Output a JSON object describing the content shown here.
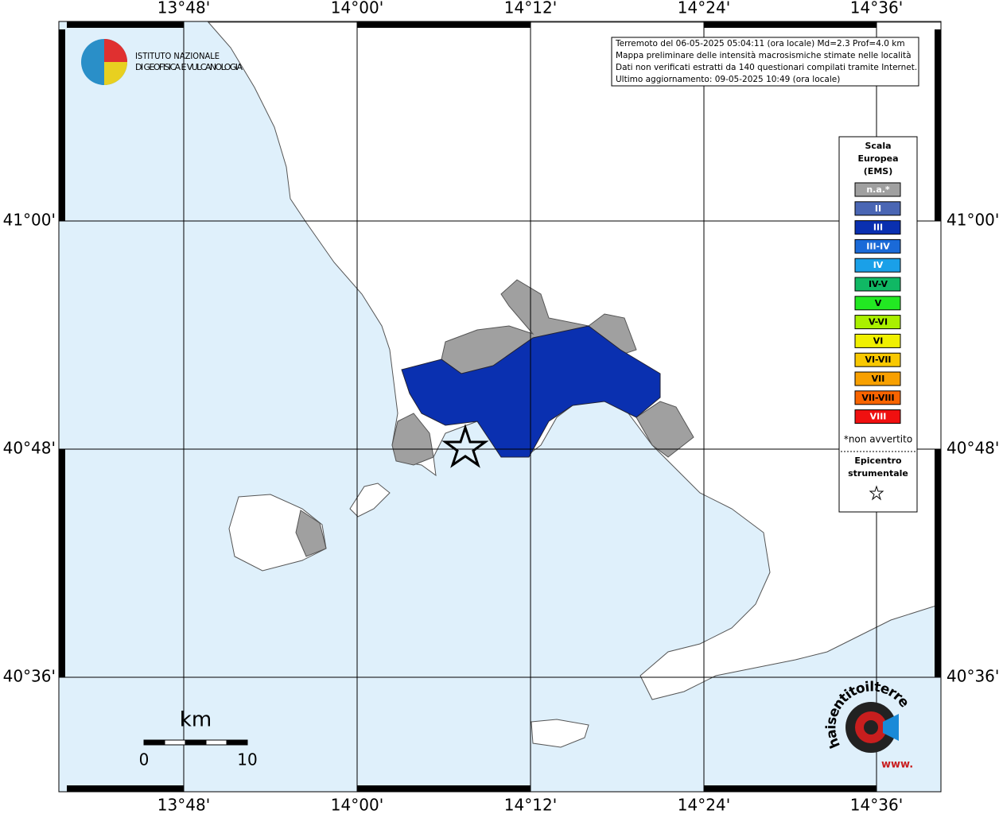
{
  "map": {
    "lon_ticks": [
      "13°48'",
      "14°00'",
      "14°12'",
      "14°24'",
      "14°36'"
    ],
    "lat_ticks": [
      "41°00'",
      "40°48'",
      "40°36'"
    ],
    "logo": {
      "line1": "ISTITUTO NAZIONALE",
      "line2": "DI GEOFISICA E VULCANOLOGIA"
    },
    "info": [
      "Terremoto del 06-05-2025 05:04:11 (ora locale) Md=2.3 Prof=4.0 km",
      "Mappa preliminare delle intensità macrosismiche stimate nelle località",
      "Dati non verificati estratti da 140 questionari compilati tramite Internet.",
      "Ultimo aggiornamento: 09-05-2025 10:49 (ora locale)"
    ],
    "legend": {
      "title": [
        "Scala",
        "Europea",
        "(EMS)"
      ],
      "classes": [
        {
          "label": "n.a.*",
          "color": "#a0a0a0",
          "text_color": "#ffffff"
        },
        {
          "label": "II",
          "color": "#4a66b4",
          "text_color": "#ffffff"
        },
        {
          "label": "III",
          "color": "#0a30b0",
          "text_color": "#ffffff"
        },
        {
          "label": "III-IV",
          "color": "#1a6ad8",
          "text_color": "#ffffff"
        },
        {
          "label": "IV",
          "color": "#1aa0e8",
          "text_color": "#ffffff"
        },
        {
          "label": "IV-V",
          "color": "#10b864",
          "text_color": "#000000"
        },
        {
          "label": "V",
          "color": "#22e822",
          "text_color": "#000000"
        },
        {
          "label": "V-VI",
          "color": "#aaf000",
          "text_color": "#000000"
        },
        {
          "label": "VI",
          "color": "#f0f000",
          "text_color": "#000000"
        },
        {
          "label": "VI-VII",
          "color": "#f8c800",
          "text_color": "#000000"
        },
        {
          "label": "VII",
          "color": "#f8a000",
          "text_color": "#000000"
        },
        {
          "label": "VII-VIII",
          "color": "#f86400",
          "text_color": "#000000"
        },
        {
          "label": "VIII",
          "color": "#f01010",
          "text_color": "#ffffff"
        }
      ],
      "note": "*non avvertito",
      "epicenter": [
        "Epicentro",
        "strumentale"
      ]
    },
    "scale_bar": {
      "unit": "km",
      "ticks": [
        0,
        10
      ]
    },
    "watermark": {
      "site": "haisentitoilterremoto.it",
      "www": "www."
    }
  }
}
